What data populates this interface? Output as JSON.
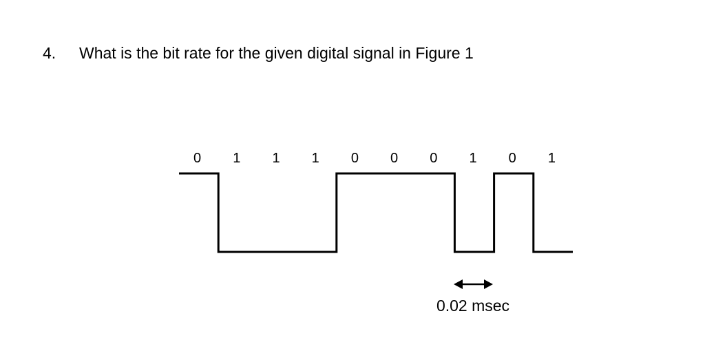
{
  "question": {
    "number": "4.",
    "text": "What is the bit rate for the given digital signal in Figure 1"
  },
  "figure": {
    "bits": [
      "0",
      "1",
      "1",
      "1",
      "0",
      "0",
      "0",
      "1",
      "0",
      "1"
    ],
    "bit_duration_label": "0.02 msec",
    "line_color": "#000000"
  }
}
